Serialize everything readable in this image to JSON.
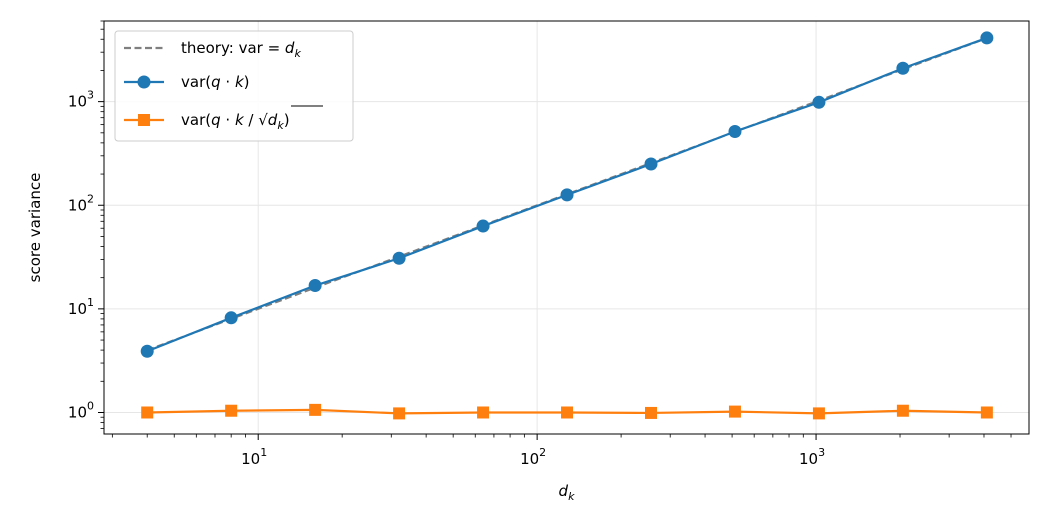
{
  "chart_data": {
    "type": "line",
    "xscale": "log",
    "yscale": "log",
    "xlabel": "d",
    "xlabel_subscript": "k",
    "ylabel": "score variance",
    "xlim": [
      2.8,
      5800
    ],
    "ylim": [
      0.62,
      6000
    ],
    "grid": true,
    "legend_position": "upper left",
    "x": [
      4,
      8,
      16,
      32,
      64,
      128,
      256,
      512,
      1024,
      2048,
      4096
    ],
    "x_ticks": [
      {
        "base": "10",
        "exp": "1",
        "value": 10
      },
      {
        "base": "10",
        "exp": "2",
        "value": 100
      },
      {
        "base": "10",
        "exp": "3",
        "value": 1000
      }
    ],
    "y_ticks": [
      {
        "base": "10",
        "exp": "0",
        "value": 1
      },
      {
        "base": "10",
        "exp": "1",
        "value": 10
      },
      {
        "base": "10",
        "exp": "2",
        "value": 100
      },
      {
        "base": "10",
        "exp": "3",
        "value": 1000
      }
    ],
    "series": [
      {
        "name": "theory: var = d_k",
        "legend_parts": {
          "prefix": "theory: var",
          "eq": " = ",
          "var": "d",
          "sub": "k"
        },
        "color": "#7f7f7f",
        "style": "dashed",
        "marker": "none",
        "values": [
          4,
          8,
          16,
          32,
          64,
          128,
          256,
          512,
          1024,
          2048,
          4096
        ]
      },
      {
        "name": "var(q·k)",
        "legend_parts": {
          "prefix": "var(",
          "q": "q",
          "dot": " · ",
          "k": "k",
          "suffix": ")"
        },
        "color": "#1f77b4",
        "style": "solid",
        "marker": "circle",
        "values": [
          3.9,
          8.2,
          16.8,
          30.8,
          63,
          126,
          250,
          515,
          985,
          2100,
          4120
        ]
      },
      {
        "name": "var(q·k/√d_k)",
        "legend_parts": {
          "prefix": "var(",
          "q": "q",
          "dot": " · ",
          "k": "k",
          "slash": " / ",
          "var": "d",
          "sub": "k",
          "suffix": ")"
        },
        "color": "#ff7f0e",
        "style": "solid",
        "marker": "square",
        "values": [
          1.0,
          1.04,
          1.06,
          0.98,
          1.0,
          1.0,
          0.99,
          1.02,
          0.98,
          1.04,
          1.0
        ]
      }
    ]
  }
}
